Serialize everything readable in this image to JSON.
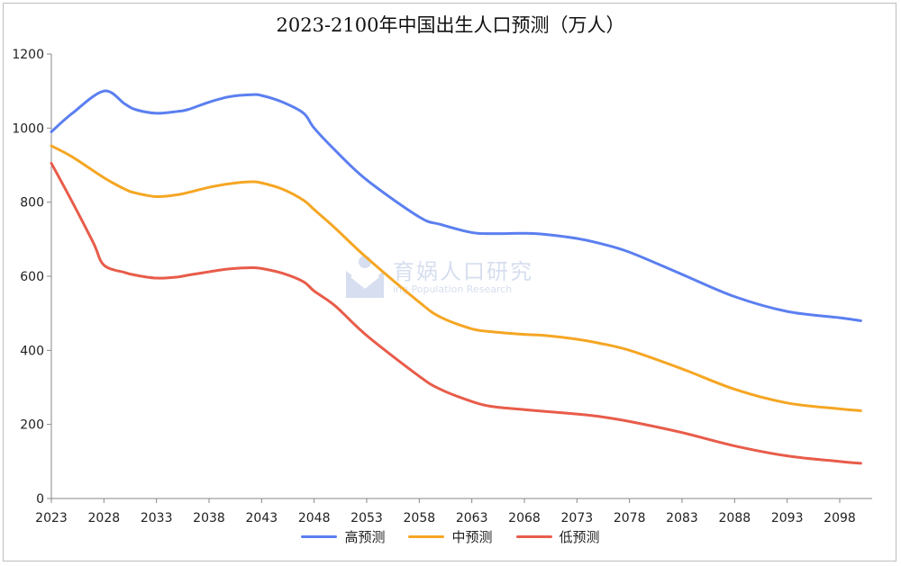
{
  "chart_data": {
    "type": "line",
    "title": "2023-2100年中国出生人口预测（万人）",
    "ylim": [
      0,
      1200
    ],
    "yticks": [
      0,
      200,
      400,
      600,
      800,
      1000,
      1200
    ],
    "xticks": [
      "2023",
      "2028",
      "2033",
      "2038",
      "2043",
      "2048",
      "2053",
      "2058",
      "2063",
      "2068",
      "2073",
      "2078",
      "2083",
      "2088",
      "2093",
      "2098"
    ],
    "xrange": [
      2023,
      2100
    ],
    "grid": false,
    "legend_position": "bottom",
    "series": [
      {
        "name": "高预测",
        "color": "#5b7ff0",
        "points": [
          [
            2023,
            990
          ],
          [
            2025,
            1040
          ],
          [
            2028,
            1100
          ],
          [
            2030,
            1065
          ],
          [
            2031,
            1050
          ],
          [
            2033,
            1040
          ],
          [
            2035,
            1045
          ],
          [
            2036,
            1050
          ],
          [
            2038,
            1070
          ],
          [
            2040,
            1085
          ],
          [
            2042,
            1090
          ],
          [
            2043,
            1088
          ],
          [
            2045,
            1070
          ],
          [
            2047,
            1040
          ],
          [
            2048,
            1000
          ],
          [
            2050,
            940
          ],
          [
            2053,
            860
          ],
          [
            2058,
            760
          ],
          [
            2060,
            740
          ],
          [
            2063,
            718
          ],
          [
            2065,
            715
          ],
          [
            2068,
            716
          ],
          [
            2070,
            713
          ],
          [
            2073,
            702
          ],
          [
            2075,
            690
          ],
          [
            2078,
            665
          ],
          [
            2083,
            605
          ],
          [
            2088,
            545
          ],
          [
            2093,
            505
          ],
          [
            2098,
            488
          ],
          [
            2100,
            480
          ]
        ]
      },
      {
        "name": "中预测",
        "color": "#f5a623",
        "points": [
          [
            2023,
            952
          ],
          [
            2025,
            922
          ],
          [
            2028,
            866
          ],
          [
            2030,
            835
          ],
          [
            2031,
            825
          ],
          [
            2033,
            815
          ],
          [
            2035,
            820
          ],
          [
            2036,
            826
          ],
          [
            2038,
            840
          ],
          [
            2040,
            850
          ],
          [
            2042,
            855
          ],
          [
            2043,
            852
          ],
          [
            2045,
            835
          ],
          [
            2047,
            805
          ],
          [
            2048,
            780
          ],
          [
            2050,
            730
          ],
          [
            2053,
            650
          ],
          [
            2058,
            530
          ],
          [
            2060,
            490
          ],
          [
            2063,
            458
          ],
          [
            2065,
            450
          ],
          [
            2068,
            443
          ],
          [
            2070,
            440
          ],
          [
            2073,
            430
          ],
          [
            2075,
            420
          ],
          [
            2078,
            400
          ],
          [
            2083,
            350
          ],
          [
            2088,
            295
          ],
          [
            2093,
            258
          ],
          [
            2098,
            242
          ],
          [
            2100,
            237
          ]
        ]
      },
      {
        "name": "低预测",
        "color": "#e85c4a",
        "points": [
          [
            2023,
            905
          ],
          [
            2025,
            800
          ],
          [
            2027,
            690
          ],
          [
            2028,
            630
          ],
          [
            2030,
            610
          ],
          [
            2031,
            603
          ],
          [
            2033,
            595
          ],
          [
            2035,
            598
          ],
          [
            2036,
            603
          ],
          [
            2038,
            612
          ],
          [
            2040,
            620
          ],
          [
            2042,
            623
          ],
          [
            2043,
            621
          ],
          [
            2045,
            608
          ],
          [
            2047,
            585
          ],
          [
            2048,
            560
          ],
          [
            2050,
            520
          ],
          [
            2053,
            440
          ],
          [
            2058,
            330
          ],
          [
            2060,
            295
          ],
          [
            2063,
            262
          ],
          [
            2065,
            248
          ],
          [
            2068,
            240
          ],
          [
            2070,
            235
          ],
          [
            2073,
            228
          ],
          [
            2075,
            222
          ],
          [
            2078,
            208
          ],
          [
            2083,
            178
          ],
          [
            2088,
            142
          ],
          [
            2093,
            115
          ],
          [
            2098,
            100
          ],
          [
            2100,
            95
          ]
        ]
      }
    ]
  },
  "watermark": {
    "text": "育娲人口研究",
    "subtext": "ing Population Research"
  }
}
